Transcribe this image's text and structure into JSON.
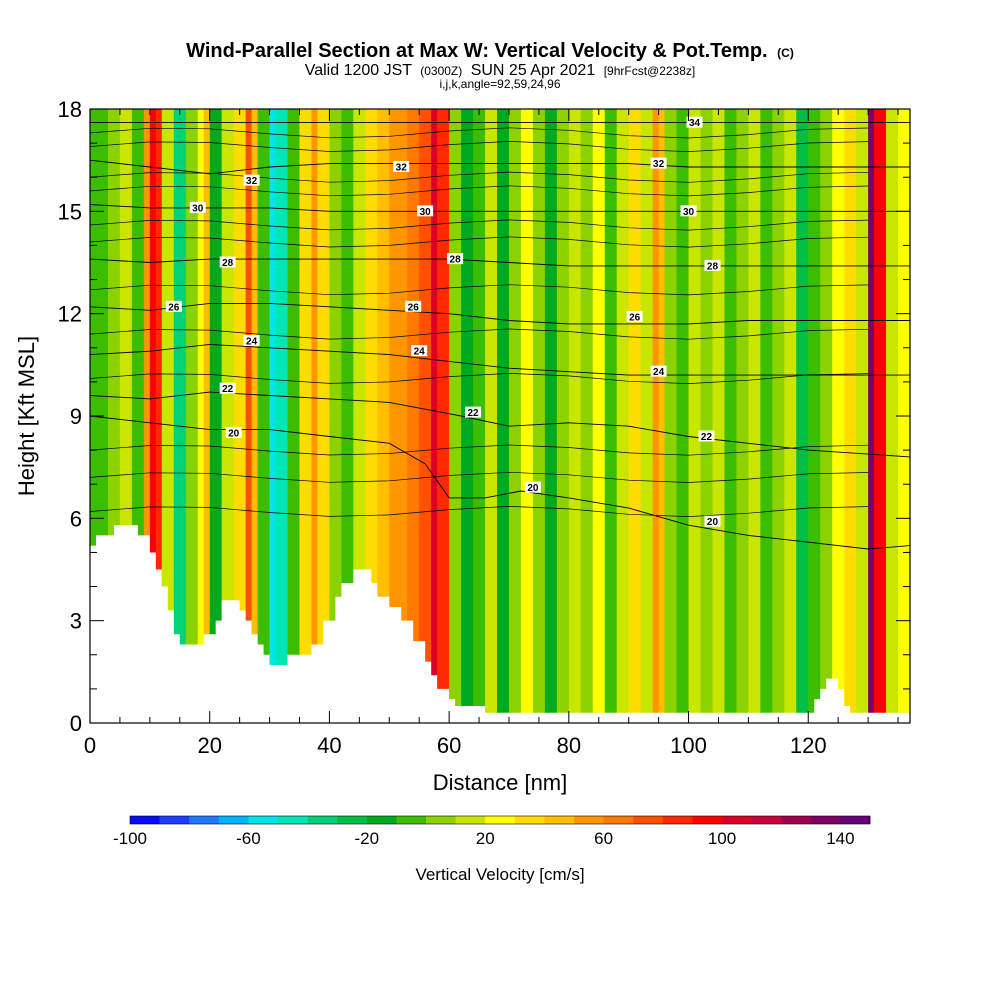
{
  "chart_data": {
    "type": "heatmap",
    "title_main": "Wind-Parallel Section at Max W: Vertical Velocity & Pot.Temp.",
    "title_mark": "(C)",
    "subtitle_a": "Valid 1200 JST",
    "subtitle_b": "(0300Z)",
    "subtitle_c": "SUN 25 Apr 2021",
    "subtitle_d": "[9hrFcst@2238z]",
    "subtitle_line2": "i,j,k,angle=92,59,24,96",
    "xlabel": "Distance [nm]",
    "ylabel": "Height [Kft MSL]",
    "xlim": [
      0,
      137
    ],
    "ylim": [
      0,
      18
    ],
    "x_ticks": [
      0,
      20,
      40,
      60,
      80,
      100,
      120
    ],
    "x_tick_labels": [
      "0",
      "20",
      "40",
      "60",
      "80",
      "100",
      "120"
    ],
    "y_ticks": [
      0,
      3,
      6,
      9,
      12,
      15,
      18
    ],
    "y_tick_labels": [
      "0",
      "3",
      "6",
      "9",
      "12",
      "15",
      "18"
    ],
    "colorbar": {
      "label": "Vertical Velocity [cm/s]",
      "min": -100,
      "max": 150,
      "step": 10,
      "tick_values": [
        -100,
        -60,
        -20,
        20,
        60,
        100,
        140
      ],
      "tick_labels": [
        "-100",
        "-60",
        "-20",
        "20",
        "60",
        "100",
        "140"
      ],
      "colors": [
        "#0a0aff",
        "#1e3cff",
        "#1e78ff",
        "#00b4ff",
        "#00e6e6",
        "#00e6b4",
        "#00d278",
        "#00be46",
        "#00aa1e",
        "#3cbe00",
        "#8cd200",
        "#c8e600",
        "#ffff00",
        "#ffdc00",
        "#ffbe00",
        "#ff9600",
        "#ff7800",
        "#ff5000",
        "#ff2800",
        "#ff0000",
        "#dc0028",
        "#c8003c",
        "#a00050",
        "#800064",
        "#640078"
      ]
    },
    "terrain_profile": [
      [
        0,
        5.2
      ],
      [
        1,
        5.5
      ],
      [
        3,
        5.5
      ],
      [
        4,
        5.8
      ],
      [
        6,
        5.8
      ],
      [
        8,
        5.5
      ],
      [
        10,
        5.0
      ],
      [
        11,
        4.5
      ],
      [
        12,
        4.0
      ],
      [
        13,
        3.3
      ],
      [
        14,
        2.6
      ],
      [
        15,
        2.3
      ],
      [
        18,
        2.3
      ],
      [
        19,
        2.6
      ],
      [
        20,
        2.6
      ],
      [
        21,
        3.0
      ],
      [
        22,
        3.6
      ],
      [
        24,
        3.6
      ],
      [
        25,
        3.3
      ],
      [
        26,
        3.0
      ],
      [
        27,
        2.6
      ],
      [
        28,
        2.3
      ],
      [
        29,
        2.0
      ],
      [
        30,
        1.7
      ],
      [
        32,
        1.7
      ],
      [
        33,
        2.0
      ],
      [
        36,
        2.0
      ],
      [
        37,
        2.3
      ],
      [
        39,
        3.0
      ],
      [
        41,
        3.7
      ],
      [
        42,
        4.1
      ],
      [
        44,
        4.5
      ],
      [
        46,
        4.5
      ],
      [
        47,
        4.1
      ],
      [
        48,
        3.7
      ],
      [
        50,
        3.4
      ],
      [
        52,
        3.0
      ],
      [
        54,
        2.4
      ],
      [
        56,
        1.8
      ],
      [
        57,
        1.4
      ],
      [
        58,
        1.0
      ],
      [
        60,
        0.7
      ],
      [
        61,
        0.5
      ],
      [
        63,
        0.5
      ],
      [
        66,
        0.3
      ],
      [
        68,
        0.3
      ],
      [
        70,
        0.3
      ],
      [
        118,
        0.3
      ],
      [
        120,
        0.3
      ],
      [
        121,
        0.7
      ],
      [
        122,
        1.0
      ],
      [
        123,
        1.3
      ],
      [
        124,
        1.3
      ],
      [
        125,
        1.0
      ],
      [
        126,
        0.5
      ],
      [
        127,
        0.3
      ],
      [
        137,
        0.3
      ]
    ],
    "w_columns": [
      [
        0,
        -10
      ],
      [
        3,
        0
      ],
      [
        5,
        10
      ],
      [
        7,
        -10
      ],
      [
        9,
        50
      ],
      [
        10,
        90
      ],
      [
        11,
        80
      ],
      [
        12,
        10
      ],
      [
        14,
        -40
      ],
      [
        16,
        0
      ],
      [
        18,
        20
      ],
      [
        19,
        40
      ],
      [
        20,
        -20
      ],
      [
        22,
        10
      ],
      [
        24,
        30
      ],
      [
        26,
        70
      ],
      [
        27,
        40
      ],
      [
        28,
        -10
      ],
      [
        30,
        -60
      ],
      [
        31,
        -50
      ],
      [
        33,
        -10
      ],
      [
        35,
        30
      ],
      [
        37,
        50
      ],
      [
        38,
        30
      ],
      [
        40,
        0
      ],
      [
        42,
        -10
      ],
      [
        44,
        10
      ],
      [
        46,
        30
      ],
      [
        48,
        40
      ],
      [
        50,
        50
      ],
      [
        53,
        60
      ],
      [
        55,
        70
      ],
      [
        57,
        100
      ],
      [
        58,
        80
      ],
      [
        60,
        0
      ],
      [
        62,
        -20
      ],
      [
        64,
        -10
      ],
      [
        66,
        10
      ],
      [
        68,
        -20
      ],
      [
        70,
        0
      ],
      [
        72,
        20
      ],
      [
        74,
        0
      ],
      [
        76,
        -20
      ],
      [
        78,
        0
      ],
      [
        80,
        10
      ],
      [
        82,
        0
      ],
      [
        84,
        20
      ],
      [
        86,
        -10
      ],
      [
        88,
        10
      ],
      [
        90,
        30
      ],
      [
        92,
        10
      ],
      [
        94,
        50
      ],
      [
        95,
        40
      ],
      [
        96,
        0
      ],
      [
        98,
        -10
      ],
      [
        100,
        10
      ],
      [
        102,
        0
      ],
      [
        104,
        10
      ],
      [
        106,
        -10
      ],
      [
        108,
        0
      ],
      [
        110,
        10
      ],
      [
        112,
        -10
      ],
      [
        114,
        0
      ],
      [
        116,
        10
      ],
      [
        118,
        -30
      ],
      [
        120,
        -10
      ],
      [
        122,
        0
      ],
      [
        124,
        20
      ],
      [
        126,
        30
      ],
      [
        128,
        10
      ],
      [
        130,
        130
      ],
      [
        131,
        90
      ],
      [
        133,
        10
      ],
      [
        135,
        20
      ],
      [
        137,
        10
      ]
    ],
    "theta_contours": [
      {
        "label": "20",
        "points": [
          [
            0,
            9.0
          ],
          [
            10,
            8.8
          ],
          [
            20,
            8.6
          ],
          [
            30,
            8.6
          ],
          [
            40,
            8.4
          ],
          [
            50,
            8.2
          ],
          [
            56,
            7.6
          ],
          [
            60,
            6.6
          ],
          [
            66,
            6.6
          ],
          [
            72,
            6.8
          ],
          [
            80,
            6.6
          ],
          [
            90,
            6.3
          ],
          [
            100,
            5.8
          ],
          [
            110,
            5.5
          ],
          [
            120,
            5.3
          ],
          [
            130,
            5.1
          ],
          [
            137,
            5.2
          ]
        ],
        "label_at": [
          [
            24,
            8.5
          ],
          [
            74,
            6.9
          ],
          [
            104,
            5.9
          ]
        ]
      },
      {
        "label": "22",
        "points": [
          [
            0,
            9.6
          ],
          [
            10,
            9.5
          ],
          [
            20,
            9.7
          ],
          [
            30,
            9.6
          ],
          [
            40,
            9.5
          ],
          [
            50,
            9.4
          ],
          [
            56,
            9.2
          ],
          [
            62,
            9.0
          ],
          [
            70,
            8.7
          ],
          [
            80,
            8.8
          ],
          [
            90,
            8.7
          ],
          [
            100,
            8.4
          ],
          [
            110,
            8.2
          ],
          [
            120,
            8.0
          ],
          [
            137,
            7.8
          ]
        ],
        "label_at": [
          [
            23,
            9.8
          ],
          [
            64,
            9.1
          ],
          [
            103,
            8.4
          ]
        ]
      },
      {
        "label": "24",
        "points": [
          [
            0,
            10.8
          ],
          [
            10,
            10.9
          ],
          [
            20,
            11.1
          ],
          [
            30,
            11.0
          ],
          [
            40,
            10.9
          ],
          [
            50,
            10.8
          ],
          [
            60,
            10.6
          ],
          [
            70,
            10.4
          ],
          [
            80,
            10.3
          ],
          [
            90,
            10.2
          ],
          [
            100,
            10.2
          ],
          [
            110,
            10.2
          ],
          [
            120,
            10.2
          ],
          [
            137,
            10.2
          ]
        ],
        "label_at": [
          [
            27,
            11.2
          ],
          [
            55,
            10.9
          ],
          [
            95,
            10.3
          ]
        ]
      },
      {
        "label": "26",
        "points": [
          [
            0,
            12.2
          ],
          [
            10,
            12.1
          ],
          [
            20,
            12.3
          ],
          [
            30,
            12.3
          ],
          [
            40,
            12.2
          ],
          [
            50,
            12.1
          ],
          [
            60,
            12.0
          ],
          [
            70,
            11.8
          ],
          [
            80,
            11.7
          ],
          [
            90,
            11.7
          ],
          [
            100,
            11.7
          ],
          [
            110,
            11.8
          ],
          [
            137,
            11.8
          ]
        ],
        "label_at": [
          [
            14,
            12.2
          ],
          [
            54,
            12.2
          ],
          [
            91,
            11.9
          ]
        ]
      },
      {
        "label": "28",
        "points": [
          [
            0,
            13.6
          ],
          [
            10,
            13.5
          ],
          [
            20,
            13.6
          ],
          [
            30,
            13.6
          ],
          [
            40,
            13.6
          ],
          [
            50,
            13.6
          ],
          [
            60,
            13.6
          ],
          [
            70,
            13.5
          ],
          [
            80,
            13.4
          ],
          [
            90,
            13.4
          ],
          [
            100,
            13.4
          ],
          [
            110,
            13.4
          ],
          [
            137,
            13.4
          ]
        ],
        "label_at": [
          [
            23,
            13.5
          ],
          [
            61,
            13.6
          ],
          [
            104,
            13.4
          ]
        ]
      },
      {
        "label": "30",
        "points": [
          [
            0,
            15.2
          ],
          [
            10,
            15.1
          ],
          [
            20,
            15.1
          ],
          [
            30,
            15.1
          ],
          [
            40,
            15.0
          ],
          [
            50,
            15.0
          ],
          [
            60,
            15.0
          ],
          [
            70,
            15.0
          ],
          [
            80,
            15.0
          ],
          [
            90,
            15.0
          ],
          [
            100,
            15.0
          ],
          [
            110,
            15.0
          ],
          [
            137,
            15.0
          ]
        ],
        "label_at": [
          [
            18,
            15.1
          ],
          [
            56,
            15.0
          ],
          [
            100,
            15.0
          ]
        ]
      },
      {
        "label": "32",
        "points": [
          [
            0,
            16.5
          ],
          [
            10,
            16.3
          ],
          [
            20,
            16.1
          ],
          [
            30,
            16.3
          ],
          [
            40,
            16.4
          ],
          [
            50,
            16.4
          ],
          [
            60,
            16.4
          ],
          [
            70,
            16.4
          ],
          [
            80,
            16.4
          ],
          [
            90,
            16.4
          ],
          [
            100,
            16.3
          ],
          [
            110,
            16.3
          ],
          [
            137,
            16.3
          ]
        ],
        "label_at": [
          [
            27,
            15.9
          ],
          [
            52,
            16.3
          ],
          [
            95,
            16.4
          ]
        ]
      },
      {
        "label": "34",
        "points": [
          [
            0,
            17.6
          ],
          [
            10,
            17.6
          ],
          [
            20,
            17.6
          ],
          [
            30,
            17.6
          ],
          [
            40,
            17.6
          ],
          [
            50,
            17.6
          ],
          [
            60,
            17.6
          ],
          [
            70,
            17.6
          ],
          [
            80,
            17.6
          ],
          [
            90,
            17.6
          ],
          [
            100,
            17.6
          ],
          [
            110,
            17.6
          ],
          [
            137,
            17.6
          ]
        ],
        "label_at": [
          [
            101,
            17.6
          ]
        ]
      }
    ],
    "minor_theta_levels": [
      6.2,
      7.2,
      8.0,
      10.1,
      11.4,
      12.7,
      14.1,
      14.6,
      15.6,
      16.0,
      16.9,
      17.3
    ]
  }
}
